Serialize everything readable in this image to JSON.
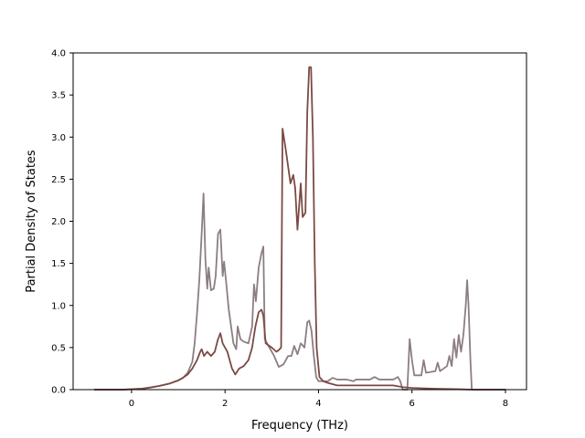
{
  "chart_data": {
    "type": "line",
    "title": "",
    "xlabel": "Frequency (THz)",
    "ylabel": "Partial Density of States",
    "xlim": [
      -1.25,
      8.45
    ],
    "ylim": [
      0.0,
      4.0
    ],
    "x_ticks": [
      "0",
      "2",
      "4",
      "6",
      "8"
    ],
    "y_ticks": [
      "0.0",
      "0.5",
      "1.0",
      "1.5",
      "2.0",
      "2.5",
      "3.0",
      "3.5",
      "4.0"
    ],
    "grid": false,
    "legend": "none",
    "series": [
      {
        "color": "#8c7e82",
        "points": [
          [
            -0.8,
            0.0
          ],
          [
            -0.2,
            0.0
          ],
          [
            0.0,
            0.005
          ],
          [
            0.2,
            0.01
          ],
          [
            0.4,
            0.025
          ],
          [
            0.6,
            0.045
          ],
          [
            0.8,
            0.07
          ],
          [
            1.0,
            0.11
          ],
          [
            1.1,
            0.14
          ],
          [
            1.2,
            0.2
          ],
          [
            1.3,
            0.33
          ],
          [
            1.35,
            0.55
          ],
          [
            1.4,
            0.9
          ],
          [
            1.45,
            1.3
          ],
          [
            1.5,
            1.85
          ],
          [
            1.54,
            2.33
          ],
          [
            1.58,
            1.55
          ],
          [
            1.62,
            1.2
          ],
          [
            1.65,
            1.45
          ],
          [
            1.7,
            1.18
          ],
          [
            1.76,
            1.2
          ],
          [
            1.8,
            1.35
          ],
          [
            1.85,
            1.85
          ],
          [
            1.9,
            1.9
          ],
          [
            1.95,
            1.35
          ],
          [
            1.98,
            1.52
          ],
          [
            2.02,
            1.3
          ],
          [
            2.08,
            0.95
          ],
          [
            2.13,
            0.75
          ],
          [
            2.18,
            0.55
          ],
          [
            2.24,
            0.48
          ],
          [
            2.27,
            0.75
          ],
          [
            2.33,
            0.6
          ],
          [
            2.4,
            0.57
          ],
          [
            2.5,
            0.55
          ],
          [
            2.58,
            0.75
          ],
          [
            2.62,
            1.25
          ],
          [
            2.66,
            1.05
          ],
          [
            2.72,
            1.45
          ],
          [
            2.78,
            1.62
          ],
          [
            2.82,
            1.7
          ],
          [
            2.85,
            0.6
          ],
          [
            2.95,
            0.5
          ],
          [
            3.05,
            0.4
          ],
          [
            3.15,
            0.27
          ],
          [
            3.25,
            0.3
          ],
          [
            3.35,
            0.4
          ],
          [
            3.42,
            0.4
          ],
          [
            3.48,
            0.52
          ],
          [
            3.55,
            0.42
          ],
          [
            3.62,
            0.55
          ],
          [
            3.7,
            0.5
          ],
          [
            3.76,
            0.8
          ],
          [
            3.8,
            0.82
          ],
          [
            3.85,
            0.7
          ],
          [
            3.9,
            0.4
          ],
          [
            3.95,
            0.15
          ],
          [
            4.0,
            0.1
          ],
          [
            4.2,
            0.1
          ],
          [
            4.3,
            0.14
          ],
          [
            4.4,
            0.12
          ],
          [
            4.6,
            0.12
          ],
          [
            4.75,
            0.1
          ],
          [
            4.8,
            0.12
          ],
          [
            5.1,
            0.12
          ],
          [
            5.2,
            0.15
          ],
          [
            5.3,
            0.12
          ],
          [
            5.6,
            0.12
          ],
          [
            5.7,
            0.15
          ],
          [
            5.75,
            0.1
          ],
          [
            5.8,
            0.0
          ],
          [
            5.9,
            0.0
          ],
          [
            5.95,
            0.6
          ],
          [
            6.0,
            0.35
          ],
          [
            6.05,
            0.17
          ],
          [
            6.2,
            0.17
          ],
          [
            6.25,
            0.35
          ],
          [
            6.3,
            0.2
          ],
          [
            6.5,
            0.22
          ],
          [
            6.55,
            0.32
          ],
          [
            6.6,
            0.22
          ],
          [
            6.75,
            0.28
          ],
          [
            6.8,
            0.4
          ],
          [
            6.85,
            0.28
          ],
          [
            6.9,
            0.6
          ],
          [
            6.95,
            0.38
          ],
          [
            7.0,
            0.65
          ],
          [
            7.05,
            0.45
          ],
          [
            7.1,
            0.65
          ],
          [
            7.15,
            1.0
          ],
          [
            7.18,
            1.3
          ],
          [
            7.21,
            1.0
          ],
          [
            7.25,
            0.35
          ],
          [
            7.28,
            0.0
          ],
          [
            7.5,
            0.0
          ],
          [
            8.0,
            0.0
          ]
        ]
      },
      {
        "color": "#7b4a44",
        "points": [
          [
            -0.8,
            0.0
          ],
          [
            -0.2,
            0.0
          ],
          [
            0.0,
            0.005
          ],
          [
            0.2,
            0.01
          ],
          [
            0.4,
            0.025
          ],
          [
            0.6,
            0.045
          ],
          [
            0.8,
            0.07
          ],
          [
            1.0,
            0.11
          ],
          [
            1.1,
            0.14
          ],
          [
            1.2,
            0.18
          ],
          [
            1.3,
            0.25
          ],
          [
            1.4,
            0.35
          ],
          [
            1.47,
            0.45
          ],
          [
            1.5,
            0.48
          ],
          [
            1.55,
            0.4
          ],
          [
            1.62,
            0.45
          ],
          [
            1.7,
            0.4
          ],
          [
            1.78,
            0.45
          ],
          [
            1.85,
            0.6
          ],
          [
            1.9,
            0.67
          ],
          [
            1.95,
            0.55
          ],
          [
            2.0,
            0.5
          ],
          [
            2.05,
            0.45
          ],
          [
            2.1,
            0.35
          ],
          [
            2.15,
            0.25
          ],
          [
            2.22,
            0.18
          ],
          [
            2.3,
            0.25
          ],
          [
            2.4,
            0.28
          ],
          [
            2.5,
            0.35
          ],
          [
            2.58,
            0.5
          ],
          [
            2.65,
            0.75
          ],
          [
            2.72,
            0.92
          ],
          [
            2.78,
            0.95
          ],
          [
            2.82,
            0.88
          ],
          [
            2.87,
            0.55
          ],
          [
            3.0,
            0.5
          ],
          [
            3.1,
            0.45
          ],
          [
            3.15,
            0.47
          ],
          [
            3.2,
            0.5
          ],
          [
            3.23,
            3.1
          ],
          [
            3.3,
            2.85
          ],
          [
            3.4,
            2.45
          ],
          [
            3.46,
            2.55
          ],
          [
            3.5,
            2.4
          ],
          [
            3.55,
            1.9
          ],
          [
            3.62,
            2.45
          ],
          [
            3.66,
            2.05
          ],
          [
            3.72,
            2.1
          ],
          [
            3.76,
            3.3
          ],
          [
            3.8,
            3.83
          ],
          [
            3.84,
            3.83
          ],
          [
            3.88,
            3.0
          ],
          [
            3.92,
            1.5
          ],
          [
            3.96,
            0.5
          ],
          [
            4.02,
            0.15
          ],
          [
            4.1,
            0.1
          ],
          [
            4.2,
            0.08
          ],
          [
            4.4,
            0.05
          ],
          [
            4.6,
            0.05
          ],
          [
            4.8,
            0.05
          ],
          [
            5.0,
            0.05
          ],
          [
            5.2,
            0.05
          ],
          [
            5.4,
            0.05
          ],
          [
            5.6,
            0.05
          ],
          [
            5.8,
            0.03
          ],
          [
            6.0,
            0.02
          ],
          [
            6.5,
            0.01
          ],
          [
            7.0,
            0.005
          ],
          [
            7.3,
            0.0
          ],
          [
            8.0,
            0.0
          ]
        ]
      }
    ]
  }
}
